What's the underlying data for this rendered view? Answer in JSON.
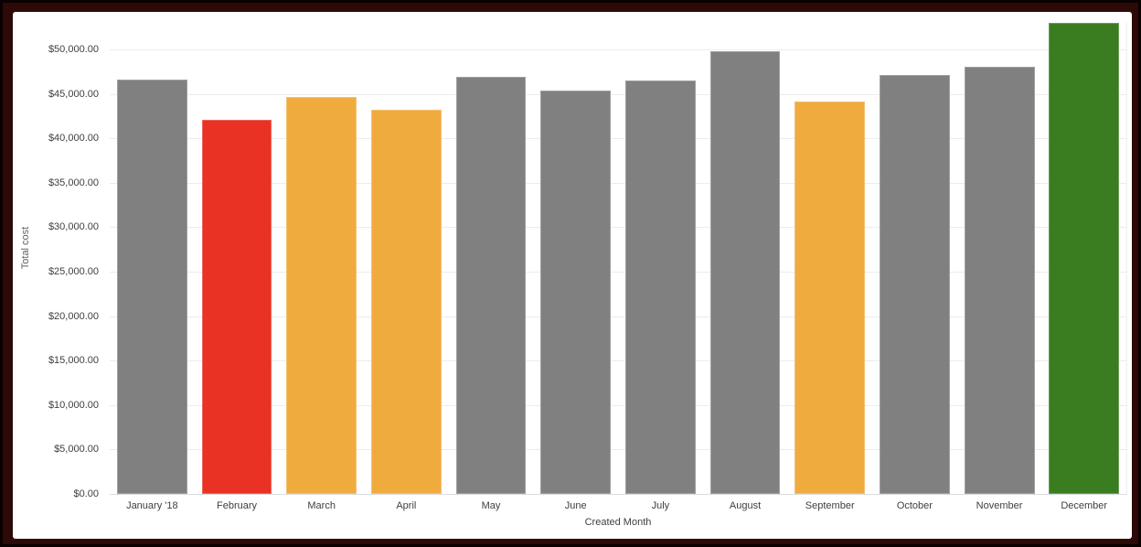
{
  "window": {
    "frame_color": "#2d0a08",
    "frame_edge_color": "#0a0101",
    "card_background": "#ffffff"
  },
  "chart_data": {
    "type": "bar",
    "title": "",
    "xlabel": "Created Month",
    "ylabel": "Total cost",
    "categories": [
      "January '18",
      "February",
      "March",
      "April",
      "May",
      "June",
      "July",
      "August",
      "September",
      "October",
      "November",
      "December"
    ],
    "values": [
      46600,
      42100,
      44700,
      43200,
      46900,
      45400,
      46500,
      49800,
      44100,
      47100,
      48100,
      53000
    ],
    "bar_colors": [
      "#808080",
      "#e93223",
      "#f0ab3f",
      "#f0ab3f",
      "#808080",
      "#808080",
      "#808080",
      "#808080",
      "#f0ab3f",
      "#808080",
      "#808080",
      "#3a7d21"
    ],
    "ylim": [
      0,
      53000
    ],
    "ytick_values": [
      0,
      5000,
      10000,
      15000,
      20000,
      25000,
      30000,
      35000,
      40000,
      45000,
      50000
    ],
    "ytick_labels": [
      "$0.00",
      "$5,000.00",
      "$10,000.00",
      "$15,000.00",
      "$20,000.00",
      "$25,000.00",
      "$30,000.00",
      "$35,000.00",
      "$40,000.00",
      "$45,000.00",
      "$50,000.00"
    ],
    "grid": "horizontal",
    "legend": "none"
  },
  "palette": {
    "default_bar": "#808080",
    "negative_red": "#e93223",
    "warning_orange": "#f0ab3f",
    "positive_green": "#3a7d21",
    "gridline": "#ececec",
    "axis_baseline": "#d9dce1",
    "tick_text": "#3c4043",
    "axis_title_text": "#616161"
  }
}
